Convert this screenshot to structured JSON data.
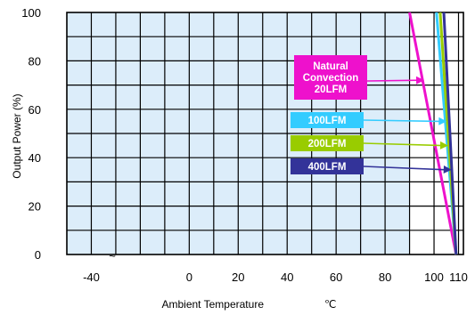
{
  "chart_data": {
    "type": "line",
    "xlabel": "Ambient Temperature",
    "xunit": "℃",
    "ylabel": "Output Power  (%)",
    "xlim": [
      -50,
      112
    ],
    "ylim": [
      0,
      100
    ],
    "x_ticks": [
      "-40",
      "0",
      "20",
      "40",
      "60",
      "80",
      "100",
      "110"
    ],
    "y_ticks": [
      "0",
      "20",
      "40",
      "60",
      "80",
      "100"
    ],
    "x_tick_values": [
      -40,
      0,
      20,
      40,
      60,
      80,
      100,
      110
    ],
    "y_tick_values": [
      0,
      20,
      40,
      60,
      80,
      100
    ],
    "tilde": "~",
    "grid": true,
    "shaded_region_x": [
      -50,
      90
    ],
    "series": [
      {
        "name": "Natural Convection 20LFM",
        "label_lines": [
          "Natural",
          "Convection",
          "20LFM"
        ],
        "color": "#ee11cc",
        "x": [
          90,
          109
        ],
        "y": [
          100,
          0
        ]
      },
      {
        "name": "100LFM",
        "label_lines": [
          "100LFM"
        ],
        "color": "#33ccff",
        "x": [
          101,
          109
        ],
        "y": [
          100,
          0
        ]
      },
      {
        "name": "200LFM",
        "label_lines": [
          "200LFM"
        ],
        "color": "#99cc00",
        "x": [
          102.5,
          109
        ],
        "y": [
          100,
          0
        ]
      },
      {
        "name": "400LFM",
        "label_lines": [
          "400LFM"
        ],
        "color": "#333399",
        "x": [
          104,
          109
        ],
        "y": [
          100,
          0
        ]
      }
    ],
    "annotations": [
      {
        "series": 0,
        "arrow_to": [
          96,
          72
        ]
      },
      {
        "series": 1,
        "arrow_to": [
          105.2,
          55
        ]
      },
      {
        "series": 2,
        "arrow_to": [
          105.8,
          45
        ]
      },
      {
        "series": 3,
        "arrow_to": [
          107.2,
          35
        ]
      }
    ]
  }
}
